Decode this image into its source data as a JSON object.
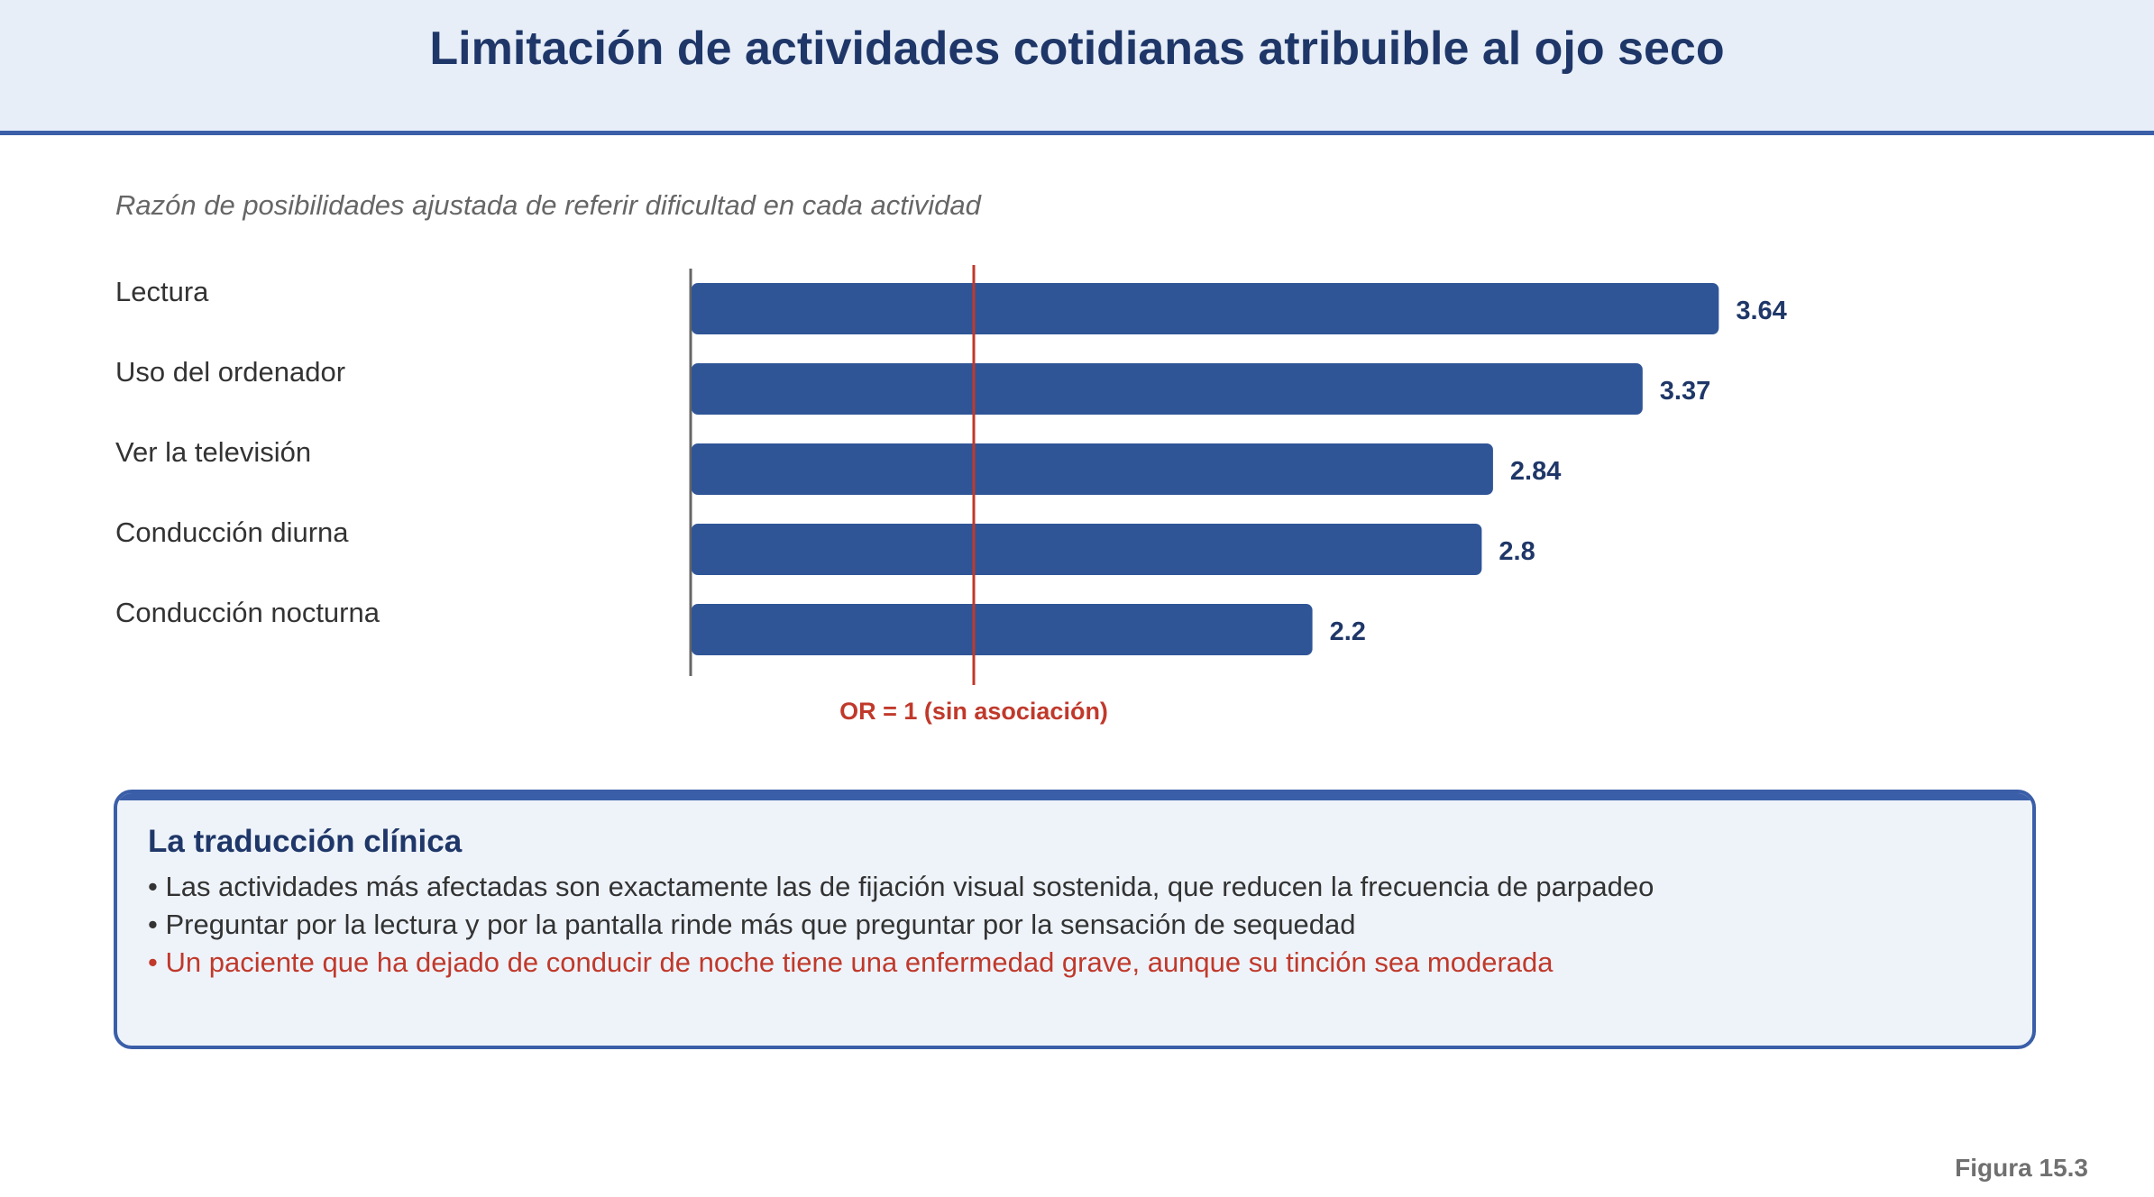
{
  "title": "Limitación de actividades cotidianas atribuible al ojo seco",
  "subtitle": "Razón de posibilidades ajustada de referir dificultad en cada actividad",
  "colors": {
    "bar": "#2f5597",
    "reference": "#c0392b",
    "title": "#1f3768"
  },
  "chart_data": {
    "type": "bar",
    "orientation": "horizontal",
    "categories": [
      "Lectura",
      "Uso del ordenador",
      "Ver la televisión",
      "Conducción diurna",
      "Conducción nocturna"
    ],
    "values": [
      3.64,
      3.37,
      2.84,
      2.8,
      2.2
    ],
    "value_labels": [
      "3.64",
      "3.37",
      "2.84",
      "2.8",
      "2.2"
    ],
    "xlim": [
      0,
      4.5
    ],
    "reference_line": {
      "value": 1,
      "label": "OR = 1 (sin asociación)"
    },
    "grid": false,
    "legend": "none"
  },
  "callout": {
    "title": "La traducción clínica",
    "bullets": [
      "• Las actividades más afectadas son exactamente las de fijación visual sostenida, que reducen la frecuencia de parpadeo",
      "• Preguntar por la lectura y por la pantalla rinde más que preguntar por la sensación de sequedad",
      "• Un paciente que ha dejado de conducir de noche tiene una enfermedad grave, aunque su tinción sea moderada"
    ]
  },
  "figure_label": "Figura 15.3"
}
